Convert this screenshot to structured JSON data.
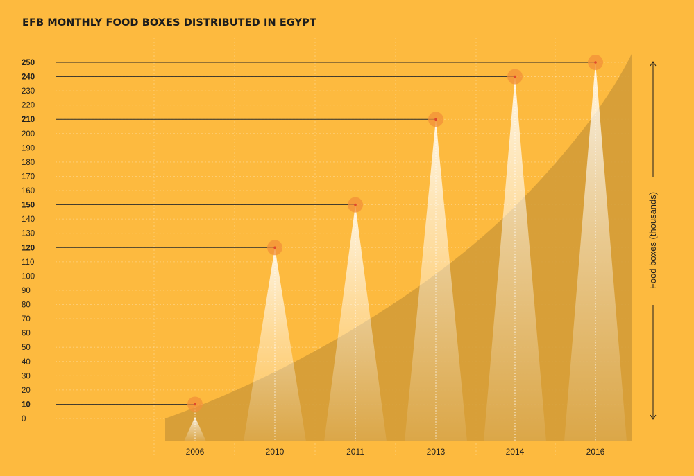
{
  "title": "EFB MONTHLY FOOD BOXES DISTRIBUTED IN EGYPT",
  "colors": {
    "background": "#FDBA3F",
    "trend_area": "#D49C37",
    "marker": "#F2903A",
    "marker_dot": "#E0482D",
    "text": "#1F1F1F"
  },
  "chart_data": {
    "type": "area",
    "title": "EFB MONTHLY FOOD BOXES DISTRIBUTED IN EGYPT",
    "xlabel": "",
    "ylabel": "Food boxes (thousands)",
    "ylim": [
      0,
      250
    ],
    "y_ticks": [
      0,
      10,
      20,
      30,
      40,
      50,
      60,
      70,
      80,
      90,
      100,
      110,
      120,
      130,
      140,
      150,
      160,
      170,
      180,
      190,
      200,
      210,
      220,
      230,
      240,
      250
    ],
    "highlighted_ticks": [
      10,
      120,
      150,
      210,
      240,
      250
    ],
    "categories": [
      "2006",
      "2010",
      "2011",
      "2013",
      "2014",
      "2016"
    ],
    "values": [
      10,
      120,
      150,
      210,
      240,
      250
    ],
    "grid": true
  }
}
